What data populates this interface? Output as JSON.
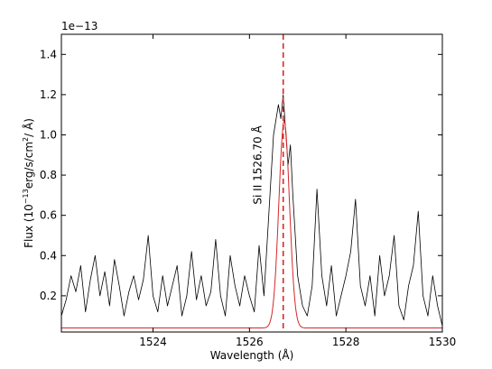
{
  "chart_data": {
    "type": "line",
    "xlabel": "Wavelength (Å)",
    "ylabel": {
      "prefix": "Flux (10",
      "exp": "−13",
      "mid": "erg/s/cm",
      "exp2": "2",
      "suffix": "/ Å)"
    },
    "offset_label": "1e−13",
    "xlim": [
      1522.1,
      1530.0
    ],
    "ylim": [
      0.02,
      1.5
    ],
    "x_ticks": [
      1524,
      1526,
      1528,
      1530
    ],
    "x_tick_labels": [
      "1524",
      "1526",
      "1528",
      "1530"
    ],
    "y_ticks": [
      0.2,
      0.4,
      0.6,
      0.8,
      1.0,
      1.2,
      1.4
    ],
    "y_tick_labels": [
      "0.2",
      "0.4",
      "0.6",
      "0.8",
      "1.0",
      "1.2",
      "1.4"
    ],
    "line_marker": {
      "x": 1526.7,
      "label": "Si II  1526.70 Å",
      "label_y": 0.85,
      "color": "#d62728"
    },
    "model": {
      "color": "#d62728",
      "baseline": 0.04,
      "amplitude": 1.03,
      "center": 1526.72,
      "sigma": 0.11
    },
    "series": [
      {
        "color": "#000000",
        "x": [
          1522.1,
          1522.2,
          1522.3,
          1522.4,
          1522.5,
          1522.6,
          1522.7,
          1522.8,
          1522.9,
          1523.0,
          1523.1,
          1523.2,
          1523.3,
          1523.4,
          1523.5,
          1523.6,
          1523.7,
          1523.8,
          1523.9,
          1524.0,
          1524.1,
          1524.2,
          1524.3,
          1524.4,
          1524.5,
          1524.6,
          1524.7,
          1524.8,
          1524.9,
          1525.0,
          1525.1,
          1525.2,
          1525.3,
          1525.4,
          1525.5,
          1525.6,
          1525.7,
          1525.8,
          1525.9,
          1526.0,
          1526.1,
          1526.2,
          1526.3,
          1526.4,
          1526.5,
          1526.6,
          1526.65,
          1526.7,
          1526.75,
          1526.8,
          1526.85,
          1526.9,
          1527.0,
          1527.1,
          1527.2,
          1527.3,
          1527.4,
          1527.5,
          1527.6,
          1527.7,
          1527.8,
          1527.9,
          1528.0,
          1528.1,
          1528.2,
          1528.3,
          1528.4,
          1528.5,
          1528.6,
          1528.7,
          1528.8,
          1528.9,
          1529.0,
          1529.1,
          1529.2,
          1529.3,
          1529.4,
          1529.5,
          1529.6,
          1529.7,
          1529.8,
          1529.9,
          1530.0
        ],
        "y": [
          0.1,
          0.18,
          0.3,
          0.22,
          0.35,
          0.12,
          0.28,
          0.4,
          0.2,
          0.32,
          0.15,
          0.38,
          0.25,
          0.1,
          0.22,
          0.3,
          0.18,
          0.28,
          0.5,
          0.2,
          0.12,
          0.3,
          0.15,
          0.25,
          0.35,
          0.1,
          0.2,
          0.42,
          0.18,
          0.3,
          0.15,
          0.22,
          0.48,
          0.2,
          0.1,
          0.4,
          0.25,
          0.15,
          0.3,
          0.2,
          0.12,
          0.45,
          0.2,
          0.6,
          1.0,
          1.15,
          1.08,
          1.2,
          1.02,
          0.85,
          0.95,
          0.7,
          0.3,
          0.15,
          0.1,
          0.25,
          0.73,
          0.3,
          0.15,
          0.35,
          0.1,
          0.2,
          0.3,
          0.42,
          0.68,
          0.25,
          0.15,
          0.3,
          0.1,
          0.4,
          0.2,
          0.3,
          0.5,
          0.15,
          0.08,
          0.25,
          0.35,
          0.62,
          0.2,
          0.1,
          0.3,
          0.15,
          0.05
        ]
      }
    ]
  }
}
